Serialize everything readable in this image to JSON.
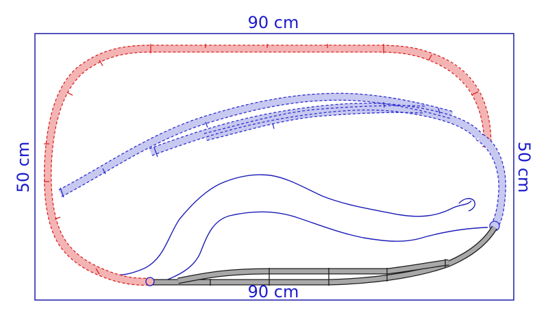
{
  "dimensions": {
    "top_width": "90 cm",
    "bottom_width": "90 cm",
    "left_height": "50 cm",
    "right_height": "50 cm"
  },
  "colors": {
    "board_border": "#1a1aa8",
    "red_track": "#d92020",
    "blue_track": "#2b2bd0",
    "grey_track": "#a8a8a8",
    "dimension_text": "#1a1acc"
  }
}
